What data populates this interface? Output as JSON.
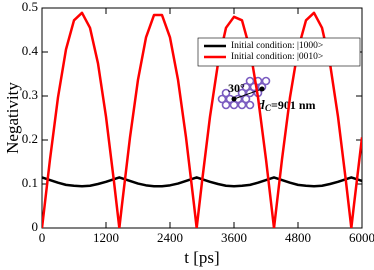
{
  "chart_data": {
    "type": "line",
    "x_label": "t [ps]",
    "y_label": "Negativity",
    "x": [
      0,
      150,
      300,
      450,
      600,
      750,
      900,
      1050,
      1200,
      1350,
      1450,
      1500,
      1650,
      1800,
      1950,
      2100,
      2250,
      2400,
      2550,
      2700,
      2850,
      2900,
      3000,
      3150,
      3300,
      3450,
      3600,
      3750,
      3900,
      4050,
      4200,
      4350,
      4500,
      4650,
      4800,
      4950,
      5100,
      5250,
      5400,
      5550,
      5700,
      5800,
      5850,
      6000
    ],
    "series": [
      {
        "name": "Initial condition: |1000>",
        "color": "#000000",
        "values": [
          0.115,
          0.109,
          0.103,
          0.098,
          0.096,
          0.095,
          0.096,
          0.1,
          0.105,
          0.111,
          0.115,
          0.113,
          0.107,
          0.101,
          0.097,
          0.095,
          0.095,
          0.097,
          0.101,
          0.107,
          0.113,
          0.115,
          0.111,
          0.105,
          0.1,
          0.096,
          0.095,
          0.096,
          0.098,
          0.103,
          0.109,
          0.115,
          0.109,
          0.103,
          0.098,
          0.096,
          0.095,
          0.096,
          0.1,
          0.105,
          0.111,
          0.115,
          0.113,
          0.107
        ]
      },
      {
        "name": "Initial condition: |0010>",
        "color": "#ff0000",
        "values": [
          0,
          0.156,
          0.297,
          0.406,
          0.472,
          0.489,
          0.455,
          0.374,
          0.253,
          0.105,
          0,
          0.053,
          0.206,
          0.337,
          0.433,
          0.484,
          0.484,
          0.433,
          0.337,
          0.206,
          0.053,
          0,
          0.105,
          0.253,
          0.374,
          0.455,
          0.48,
          0.472,
          0.406,
          0.297,
          0.156,
          0,
          0.156,
          0.297,
          0.406,
          0.472,
          0.489,
          0.455,
          0.374,
          0.253,
          0.105,
          0,
          0.053,
          0.206
        ]
      }
    ],
    "xlim": [
      0,
      6000
    ],
    "xticks": [
      0,
      1200,
      2400,
      3600,
      4800,
      6000
    ],
    "ylim": [
      0,
      0.5
    ],
    "yticks": [
      0,
      0.1,
      0.2,
      0.3,
      0.4,
      0.5
    ],
    "legend": "upper right",
    "inset": {
      "angle": "30°",
      "distance_symbol": "d",
      "distance_subscript": "C",
      "distance_value": "=901 nm"
    }
  }
}
